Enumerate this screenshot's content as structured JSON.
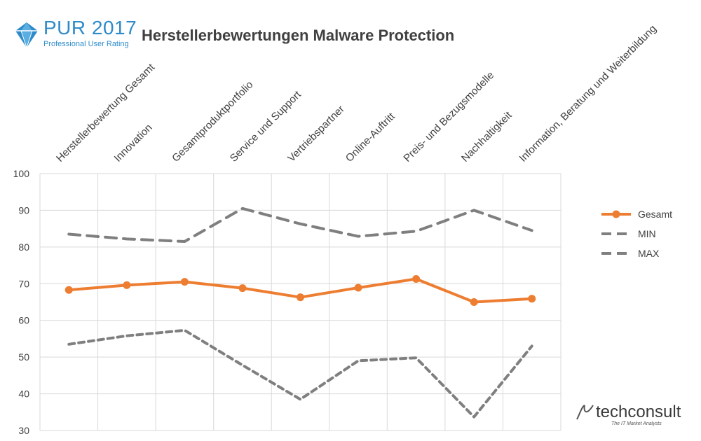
{
  "header": {
    "logo_title": "PUR 2017",
    "logo_subtitle": "Professional User Rating",
    "chart_title": "Herstellerbewertungen Malware Protection"
  },
  "branding": {
    "name": "techconsult",
    "tagline": "The IT Market Analysts"
  },
  "colors": {
    "gesamt": "#ed7d31",
    "minmax": "#7f7f7f",
    "grid": "#d9d9d9",
    "logo": "#2e8bc9"
  },
  "chart_data": {
    "type": "line",
    "title": "Herstellerbewertungen Malware Protection",
    "categories": [
      "Herstellerbewertung Gesamt",
      "Innovation",
      "Gesamtproduktportfolio",
      "Service und Support",
      "Vertriebspartner",
      "Online-Auftritt",
      "Preis- und Bezugsmodelle",
      "Nachhaltigkeit",
      "Information, Beratung und Weiterbildung"
    ],
    "series": [
      {
        "name": "Gesamt",
        "style": "solid-markers",
        "values": [
          68.3,
          69.6,
          70.5,
          68.8,
          66.3,
          68.9,
          71.3,
          65.0,
          65.9
        ]
      },
      {
        "name": "MIN",
        "style": "dotted",
        "values": [
          53.5,
          55.8,
          57.3,
          47.8,
          38.5,
          49.0,
          49.8,
          33.7,
          53.0
        ]
      },
      {
        "name": "MAX",
        "style": "dashed",
        "values": [
          83.5,
          82.2,
          81.5,
          90.5,
          86.3,
          82.9,
          84.3,
          90.0,
          84.5
        ]
      }
    ],
    "yticks": [
      100,
      90,
      80,
      70,
      60,
      50,
      40,
      30
    ],
    "ylim": [
      30,
      100
    ],
    "grid": true,
    "legend_position": "right"
  }
}
